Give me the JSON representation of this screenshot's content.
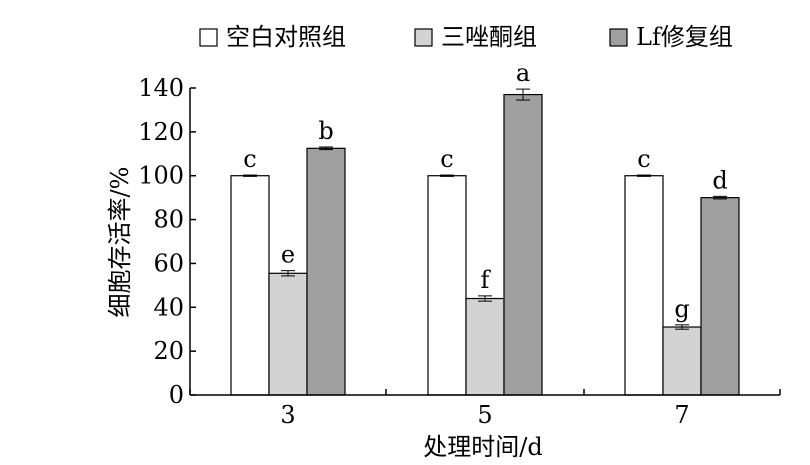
{
  "chart_data": {
    "type": "bar",
    "xlabel": "处理时间/d",
    "ylabel": "细胞存活率/%",
    "categories": [
      "3",
      "5",
      "7"
    ],
    "ylim": [
      0,
      140
    ],
    "yticks": [
      0,
      20,
      40,
      60,
      80,
      100,
      120,
      140
    ],
    "grid": false,
    "legend_position": "top",
    "series": [
      {
        "name": "空白对照组",
        "color": "#ffffff",
        "values": [
          100,
          100,
          100
        ],
        "errors": [
          0.3,
          0.3,
          0.3
        ],
        "labels": [
          "c",
          "c",
          "c"
        ]
      },
      {
        "name": "三唑酮组",
        "color": "#d3d3d3",
        "values": [
          55.5,
          44,
          31
        ],
        "errors": [
          1.2,
          1.2,
          1.0
        ],
        "labels": [
          "e",
          "f",
          "g"
        ]
      },
      {
        "name": "Lf修复组",
        "color": "#a0a0a0",
        "values": [
          112.5,
          137,
          90
        ],
        "errors": [
          0.6,
          2.5,
          0.6
        ],
        "labels": [
          "b",
          "a",
          "d"
        ]
      }
    ]
  }
}
